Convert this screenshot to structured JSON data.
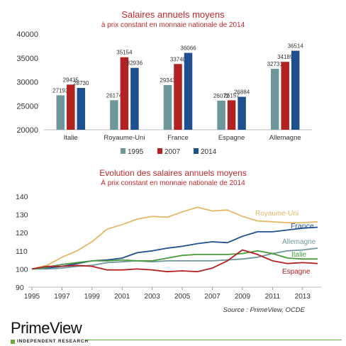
{
  "chart_data": [
    {
      "type": "bar",
      "title": "Salaires annuels moyens",
      "subtitle": "à prix constant en monnaie nationale de 2014",
      "categories": [
        "Italie",
        "Royaume-Uni",
        "France",
        "Espagne",
        "Allemagne"
      ],
      "series": [
        {
          "name": "1995",
          "color": "#6e979b",
          "values": [
            27193,
            26174,
            29343,
            26072,
            32731
          ]
        },
        {
          "name": "2007",
          "color": "#b22222",
          "values": [
            29435,
            35154,
            33740,
            26157,
            34189
          ]
        },
        {
          "name": "2014",
          "color": "#1f4f8f",
          "values": [
            28730,
            32936,
            36066,
            26884,
            36514
          ]
        }
      ],
      "data_labels": [
        [
          "27193",
          "29435",
          "28730"
        ],
        [
          "26174",
          "35154",
          "32936"
        ],
        [
          "29343",
          "33740",
          "36066"
        ],
        [
          "26072",
          "26157",
          "26884"
        ],
        [
          "32731",
          "34189",
          "36514"
        ]
      ],
      "ylim": [
        20000,
        40000
      ],
      "yticks": [
        "40000",
        "35000",
        "30000",
        "25000",
        "20000"
      ],
      "legend_position": "bottom",
      "grid": false
    },
    {
      "type": "line",
      "title": "Evolution des salaires annuels moyens",
      "subtitle": "À prix constant en monnaie nationale de 2014",
      "x": [
        1995,
        1996,
        1997,
        1998,
        1999,
        2000,
        2001,
        2002,
        2003,
        2004,
        2005,
        2006,
        2007,
        2008,
        2009,
        2010,
        2011,
        2012,
        2013,
        2014
      ],
      "xticks": [
        "1995",
        "1997",
        "1999",
        "2001",
        "2003",
        "2005",
        "2007",
        "2009",
        "2011",
        "2013"
      ],
      "yticks": [
        "140",
        "130",
        "120",
        "110",
        "100",
        "90"
      ],
      "xlim": [
        1995,
        2014
      ],
      "ylim": [
        90,
        140
      ],
      "grid": false,
      "series": [
        {
          "name": "Royaume-Uni",
          "color": "#e5b868",
          "values": [
            100,
            102,
            106.5,
            110,
            115,
            122,
            124.5,
            127.5,
            129,
            128.5,
            131.5,
            134,
            132,
            132.5,
            129,
            126.5,
            126,
            125.5,
            125.5,
            126
          ]
        },
        {
          "name": "France",
          "color": "#1f4f8f",
          "values": [
            100,
            100.5,
            101.5,
            103,
            104.5,
            105,
            106,
            109,
            110,
            111.5,
            112.5,
            114,
            115,
            114.5,
            118,
            120.5,
            120.5,
            121.5,
            122.5,
            123
          ]
        },
        {
          "name": "Allemagne",
          "color": "#6e979b",
          "values": [
            100,
            100,
            100.5,
            101.5,
            102,
            103.5,
            104,
            104.5,
            104,
            104.5,
            104.5,
            104.5,
            104.5,
            105,
            105.5,
            106.5,
            108.5,
            110,
            110.5,
            111.5
          ]
        },
        {
          "name": "Italie",
          "color": "#4a9a3c",
          "values": [
            100,
            101,
            102.5,
            103.5,
            104.5,
            104.5,
            105,
            104.5,
            104.5,
            106,
            107.5,
            108,
            108,
            108,
            108.5,
            110,
            108.5,
            106,
            105.5,
            105.5
          ]
        },
        {
          "name": "Espagne",
          "color": "#b22222",
          "values": [
            100,
            101.5,
            101.5,
            102,
            101.5,
            99.5,
            99.5,
            100,
            99.5,
            98.5,
            99,
            98.5,
            100.5,
            104.5,
            110.5,
            108,
            104.5,
            103,
            103.5,
            103
          ]
        }
      ]
    }
  ],
  "source_note": "Source : PrimeView, OCDE",
  "brand": {
    "name": "PrimeView",
    "tagline": "INDEPENDENT RESEARCH"
  }
}
